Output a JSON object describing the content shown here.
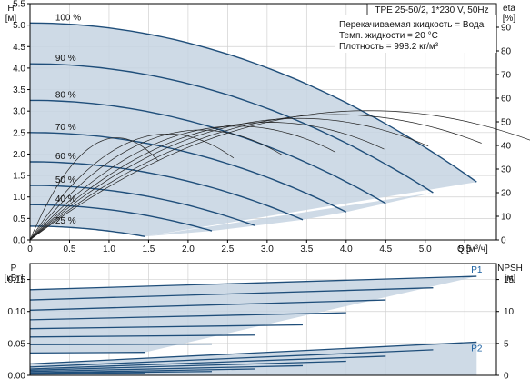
{
  "chart_data": [
    {
      "type": "line",
      "title": "TPE 25-50/2, 1*230 V, 50Hz",
      "info_lines": [
        "Перекачиваемая жидкость = Вода",
        "Темп. жидкости = 20 °C",
        "Плотность = 998.2 кг/м³"
      ],
      "ylabel": "H",
      "yunit": "[м]",
      "y2label": "eta",
      "y2unit": "[%]",
      "xlabel": "Q",
      "xunit": "[м³/ч]",
      "xlim": [
        0,
        5.9
      ],
      "ylim": [
        0,
        5.5
      ],
      "y2lim": [
        0,
        100
      ],
      "xticks": [
        "0",
        "0.5",
        "1.0",
        "1.5",
        "2.0",
        "2.5",
        "3.0",
        "3.5",
        "4.0",
        "4.5",
        "5.0",
        "5.5"
      ],
      "yticks": [
        "0.0",
        "0.5",
        "1.0",
        "1.5",
        "2.0",
        "2.5",
        "3.0",
        "3.5",
        "4.0",
        "4.5",
        "5.0",
        "5.5"
      ],
      "y2ticks": [
        "0",
        "10",
        "20",
        "30",
        "40",
        "50",
        "60",
        "70",
        "80",
        "90"
      ],
      "grid": true,
      "speed_labels": [
        "100 %",
        "90 %",
        "80 %",
        "70 %",
        "60 %",
        "50 %",
        "40 %",
        "25 %"
      ],
      "head_curves": [
        {
          "name": "100 %",
          "shutoff_head": 5.05,
          "max_flow": 5.65,
          "end_head": 1.35
        },
        {
          "name": "90 %",
          "shutoff_head": 4.1,
          "max_flow": 5.1,
          "end_head": 1.1
        },
        {
          "name": "80 %",
          "shutoff_head": 3.25,
          "max_flow": 4.5,
          "end_head": 0.85
        },
        {
          "name": "70 %",
          "shutoff_head": 2.5,
          "max_flow": 4.0,
          "end_head": 0.65
        },
        {
          "name": "60 %",
          "shutoff_head": 1.82,
          "max_flow": 3.45,
          "end_head": 0.47
        },
        {
          "name": "50 %",
          "shutoff_head": 1.27,
          "max_flow": 2.85,
          "end_head": 0.33
        },
        {
          "name": "40 %",
          "shutoff_head": 0.82,
          "max_flow": 2.3,
          "end_head": 0.21
        },
        {
          "name": "25 %",
          "shutoff_head": 0.32,
          "max_flow": 1.45,
          "end_head": 0.08
        }
      ],
      "efficiency_peak": 52
    },
    {
      "type": "line",
      "ylabel": "P",
      "yunit": "[кВт]",
      "y2label": "NPSH",
      "y2unit": "[м]",
      "xlim": [
        0,
        5.9
      ],
      "ylim": [
        0,
        0.175
      ],
      "y2lim": [
        0,
        17.5
      ],
      "yticks": [
        "0.00",
        "0.05",
        "0.10",
        "0.15"
      ],
      "y2ticks": [
        "0",
        "5",
        "10",
        "15"
      ],
      "grid": true,
      "curve_labels": [
        "P1",
        "P2"
      ],
      "p1_curves": [
        {
          "start": 0.134,
          "end": 0.155,
          "max_flow": 5.65
        },
        {
          "start": 0.118,
          "end": 0.137,
          "max_flow": 5.1
        },
        {
          "start": 0.102,
          "end": 0.118,
          "max_flow": 4.5
        },
        {
          "start": 0.087,
          "end": 0.098,
          "max_flow": 4.0
        },
        {
          "start": 0.073,
          "end": 0.079,
          "max_flow": 3.45
        },
        {
          "start": 0.06,
          "end": 0.063,
          "max_flow": 2.85
        },
        {
          "start": 0.048,
          "end": 0.049,
          "max_flow": 2.3
        },
        {
          "start": 0.035,
          "end": 0.036,
          "max_flow": 1.45
        }
      ],
      "p2_curves": [
        {
          "start": 0.018,
          "end": 0.052,
          "max_flow": 5.65
        },
        {
          "start": 0.013,
          "end": 0.04,
          "max_flow": 5.1
        },
        {
          "start": 0.01,
          "end": 0.03,
          "max_flow": 4.5
        },
        {
          "start": 0.008,
          "end": 0.022,
          "max_flow": 4.0
        },
        {
          "start": 0.006,
          "end": 0.015,
          "max_flow": 3.45
        },
        {
          "start": 0.004,
          "end": 0.01,
          "max_flow": 2.85
        },
        {
          "start": 0.003,
          "end": 0.006,
          "max_flow": 2.3
        },
        {
          "start": 0.002,
          "end": 0.003,
          "max_flow": 1.45
        }
      ]
    }
  ],
  "colors": {
    "curve": "#1f4e7a",
    "area": "#c6d4e2",
    "grid": "#d0d0d0",
    "frame": "#000000",
    "eff": "#222222",
    "label": "#1a5fa0"
  }
}
